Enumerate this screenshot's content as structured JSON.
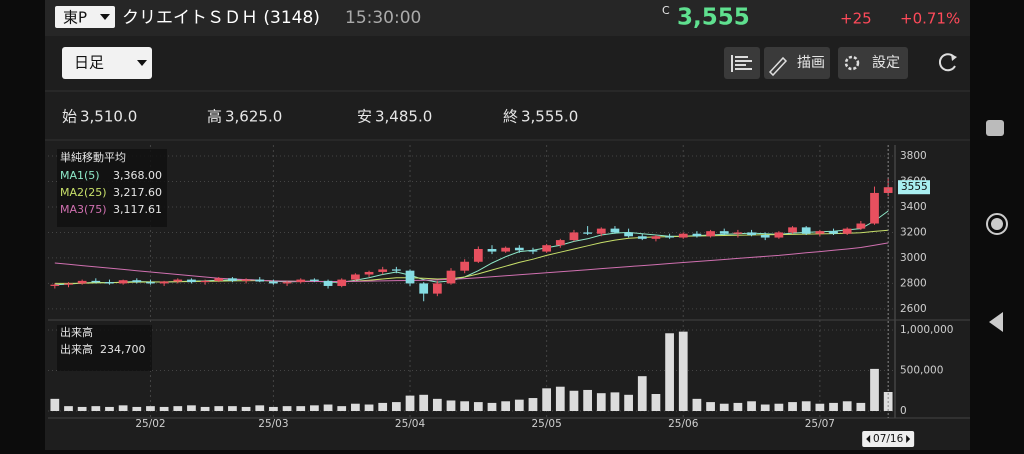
{
  "header": {
    "exchange": "東P",
    "name": "クリエイトＳＤＨ (3148)",
    "time": "15:30:00",
    "close_marker": "C",
    "price": "3,555",
    "change": "+25",
    "change_pct": "+0.71%"
  },
  "toolbar": {
    "period": "日足",
    "draw": "描画",
    "settings": "設定"
  },
  "ohlc": [
    {
      "label": "始",
      "value": "3,510.0"
    },
    {
      "label": "高",
      "value": "3,625.0"
    },
    {
      "label": "安",
      "value": "3,485.0"
    },
    {
      "label": "終",
      "value": "3,555.0"
    }
  ],
  "chart_data": {
    "type": "candlestick",
    "categories": [
      null,
      null,
      null,
      null,
      null,
      null,
      null,
      "25/02",
      null,
      null,
      null,
      null,
      null,
      null,
      null,
      null,
      "25/03",
      null,
      null,
      null,
      null,
      null,
      null,
      null,
      null,
      null,
      "25/04",
      null,
      null,
      null,
      null,
      null,
      null,
      null,
      null,
      null,
      "25/05",
      null,
      null,
      null,
      null,
      null,
      null,
      null,
      null,
      null,
      "25/06",
      null,
      null,
      null,
      null,
      null,
      null,
      null,
      null,
      null,
      "25/07",
      null,
      null,
      null,
      null,
      null
    ],
    "candles": [
      [
        2780,
        2800,
        2760,
        2790
      ],
      [
        2790,
        2810,
        2770,
        2800
      ],
      [
        2800,
        2830,
        2790,
        2820
      ],
      [
        2820,
        2840,
        2800,
        2810
      ],
      [
        2810,
        2830,
        2790,
        2800
      ],
      [
        2800,
        2830,
        2790,
        2825
      ],
      [
        2825,
        2840,
        2800,
        2810
      ],
      [
        2810,
        2830,
        2790,
        2800
      ],
      [
        2800,
        2820,
        2780,
        2815
      ],
      [
        2815,
        2840,
        2800,
        2830
      ],
      [
        2830,
        2840,
        2800,
        2810
      ],
      [
        2810,
        2830,
        2790,
        2820
      ],
      [
        2820,
        2850,
        2810,
        2840
      ],
      [
        2840,
        2850,
        2810,
        2820
      ],
      [
        2820,
        2840,
        2800,
        2830
      ],
      [
        2830,
        2850,
        2810,
        2815
      ],
      [
        2815,
        2830,
        2790,
        2800
      ],
      [
        2800,
        2820,
        2780,
        2810
      ],
      [
        2810,
        2840,
        2800,
        2830
      ],
      [
        2830,
        2840,
        2810,
        2820
      ],
      [
        2820,
        2830,
        2760,
        2780
      ],
      [
        2780,
        2840,
        2770,
        2830
      ],
      [
        2830,
        2880,
        2820,
        2870
      ],
      [
        2870,
        2900,
        2850,
        2890
      ],
      [
        2890,
        2930,
        2870,
        2910
      ],
      [
        2910,
        2930,
        2880,
        2900
      ],
      [
        2900,
        2910,
        2780,
        2800
      ],
      [
        2800,
        2810,
        2660,
        2720
      ],
      [
        2720,
        2820,
        2700,
        2800
      ],
      [
        2800,
        2920,
        2790,
        2900
      ],
      [
        2900,
        2990,
        2880,
        2970
      ],
      [
        2970,
        3090,
        2960,
        3070
      ],
      [
        3070,
        3100,
        3030,
        3050
      ],
      [
        3050,
        3090,
        3040,
        3080
      ],
      [
        3080,
        3100,
        3040,
        3060
      ],
      [
        3060,
        3080,
        3030,
        3050
      ],
      [
        3050,
        3110,
        3040,
        3100
      ],
      [
        3100,
        3150,
        3080,
        3140
      ],
      [
        3140,
        3220,
        3130,
        3200
      ],
      [
        3200,
        3250,
        3180,
        3190
      ],
      [
        3190,
        3240,
        3170,
        3230
      ],
      [
        3230,
        3250,
        3190,
        3200
      ],
      [
        3200,
        3230,
        3160,
        3170
      ],
      [
        3170,
        3190,
        3140,
        3150
      ],
      [
        3150,
        3180,
        3130,
        3170
      ],
      [
        3170,
        3190,
        3150,
        3160
      ],
      [
        3160,
        3200,
        3150,
        3190
      ],
      [
        3190,
        3210,
        3160,
        3170
      ],
      [
        3170,
        3220,
        3160,
        3210
      ],
      [
        3210,
        3230,
        3180,
        3190
      ],
      [
        3190,
        3220,
        3160,
        3200
      ],
      [
        3200,
        3220,
        3170,
        3180
      ],
      [
        3180,
        3200,
        3140,
        3160
      ],
      [
        3160,
        3210,
        3150,
        3200
      ],
      [
        3200,
        3250,
        3190,
        3240
      ],
      [
        3240,
        3250,
        3180,
        3190
      ],
      [
        3190,
        3220,
        3170,
        3210
      ],
      [
        3210,
        3230,
        3180,
        3190
      ],
      [
        3190,
        3240,
        3180,
        3230
      ],
      [
        3230,
        3290,
        3220,
        3270
      ],
      [
        3270,
        3560,
        3260,
        3510
      ],
      [
        3510,
        3625,
        3485,
        3555
      ]
    ],
    "up_color": "#e8505f",
    "down_color": "#86dde3",
    "ylim": [
      2560,
      3840
    ],
    "yticks": [
      2600,
      2800,
      3000,
      3200,
      3400,
      3600,
      3800
    ],
    "price_tag": 3555,
    "ma_title": "単純移動平均",
    "series": [
      {
        "name": "MA1(5)",
        "color": "#8ee8c8",
        "value_label": "3,368.00",
        "values": [
          2790,
          2795,
          2803,
          2808,
          2806,
          2810,
          2815,
          2812,
          2810,
          2814,
          2818,
          2820,
          2825,
          2828,
          2830,
          2826,
          2818,
          2812,
          2815,
          2818,
          2810,
          2808,
          2825,
          2845,
          2870,
          2890,
          2865,
          2830,
          2810,
          2820,
          2850,
          2900,
          2960,
          3010,
          3050,
          3060,
          3080,
          3100,
          3130,
          3150,
          3180,
          3195,
          3200,
          3190,
          3180,
          3170,
          3170,
          3175,
          3180,
          3185,
          3190,
          3195,
          3190,
          3185,
          3195,
          3200,
          3205,
          3210,
          3220,
          3230,
          3290,
          3368
        ]
      },
      {
        "name": "MA2(25)",
        "color": "#c8e06a",
        "value_label": "3,217.60",
        "values": [
          2800,
          2800,
          2802,
          2804,
          2806,
          2808,
          2810,
          2811,
          2812,
          2813,
          2815,
          2816,
          2818,
          2820,
          2821,
          2822,
          2820,
          2818,
          2816,
          2816,
          2815,
          2814,
          2818,
          2825,
          2835,
          2845,
          2845,
          2840,
          2835,
          2838,
          2850,
          2875,
          2905,
          2935,
          2965,
          2990,
          3020,
          3045,
          3070,
          3095,
          3120,
          3140,
          3155,
          3160,
          3165,
          3167,
          3170,
          3172,
          3174,
          3176,
          3178,
          3180,
          3182,
          3183,
          3185,
          3187,
          3189,
          3191,
          3194,
          3198,
          3208,
          3217.6
        ]
      },
      {
        "name": "MA3(75)",
        "color": "#d070b0",
        "value_label": "3,117.61",
        "values": [
          2960,
          2950,
          2940,
          2930,
          2920,
          2910,
          2900,
          2890,
          2880,
          2870,
          2860,
          2850,
          2840,
          2835,
          2830,
          2825,
          2820,
          2818,
          2816,
          2815,
          2815,
          2815,
          2816,
          2818,
          2820,
          2822,
          2823,
          2825,
          2828,
          2832,
          2838,
          2845,
          2852,
          2860,
          2868,
          2876,
          2884,
          2892,
          2900,
          2908,
          2916,
          2924,
          2932,
          2940,
          2948,
          2956,
          2964,
          2972,
          2980,
          2988,
          2996,
          3004,
          3012,
          3020,
          3030,
          3040,
          3050,
          3060,
          3070,
          3082,
          3100,
          3117.61
        ]
      }
    ],
    "volume": {
      "title": "出来高",
      "last_label": "234,700",
      "color": "#dcdcdc",
      "ylim": [
        0,
        1025000
      ],
      "yticks": [
        0,
        {
          "value": 500000,
          "label": "500,000"
        },
        {
          "value": 1000000,
          "label": "1,000,000"
        }
      ],
      "values": [
        150000,
        60000,
        50000,
        60000,
        50000,
        70000,
        50000,
        60000,
        50000,
        60000,
        70000,
        50000,
        60000,
        60000,
        50000,
        70000,
        50000,
        60000,
        60000,
        70000,
        80000,
        60000,
        90000,
        80000,
        100000,
        110000,
        190000,
        200000,
        150000,
        130000,
        120000,
        110000,
        100000,
        120000,
        140000,
        160000,
        280000,
        300000,
        250000,
        260000,
        220000,
        230000,
        200000,
        430000,
        210000,
        960000,
        980000,
        150000,
        110000,
        90000,
        100000,
        120000,
        80000,
        90000,
        110000,
        120000,
        90000,
        100000,
        120000,
        100000,
        520000,
        234700
      ]
    },
    "cursor_date": "07/16"
  }
}
